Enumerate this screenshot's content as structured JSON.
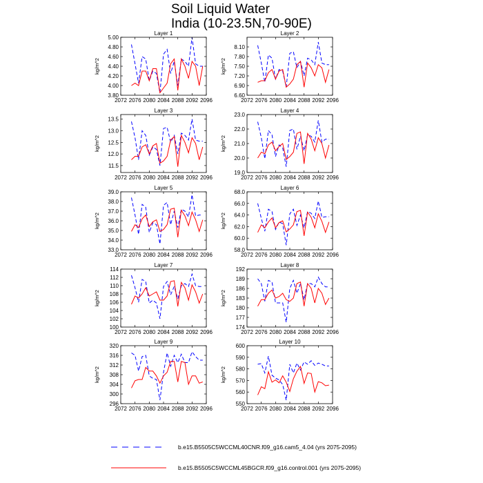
{
  "figure": {
    "title_line1": "Soil Liquid Water",
    "title_line2": "India (10-23.5N,70-90E)"
  },
  "legend": [
    {
      "label": "b.e15.B5505C5WCCML40CNR.f09_g16.cam5_4.04 (yrs 2075-2095)",
      "color": "#0000ff",
      "dash": "dashed"
    },
    {
      "label": "b.e15.B5505C5WCCML45BGCR.f09_g16.control.001 (yrs 2075-2095)",
      "color": "#ff0000",
      "dash": "solid"
    }
  ],
  "chart_data": [
    {
      "type": "line",
      "title": "Layer 1",
      "ylabel": "kg/m^2",
      "xlim": [
        2072,
        2096
      ],
      "ylim": [
        3.8,
        5.0
      ],
      "xticks": [
        "2072",
        "2076",
        "2080",
        "2084",
        "2088",
        "2092",
        "2096"
      ],
      "yticks": [
        "3.80",
        "4.00",
        "4.20",
        "4.40",
        "4.60",
        "4.80",
        "5.00"
      ],
      "x": [
        2075,
        2076,
        2077,
        2078,
        2079,
        2080,
        2081,
        2082,
        2083,
        2084,
        2085,
        2086,
        2087,
        2088,
        2089,
        2090,
        2091,
        2092,
        2093,
        2094,
        2095
      ],
      "series": [
        {
          "values": [
            4.85,
            4.45,
            4.05,
            4.6,
            4.55,
            4.1,
            4.3,
            4.25,
            3.85,
            4.65,
            4.75,
            4.25,
            4.5,
            4.0,
            4.55,
            4.5,
            4.4,
            5.0,
            4.45,
            4.4,
            4.4
          ]
        },
        {
          "values": [
            4.0,
            4.05,
            4.0,
            4.3,
            4.3,
            4.1,
            4.35,
            4.35,
            3.85,
            3.95,
            4.05,
            4.45,
            4.55,
            3.9,
            4.55,
            4.4,
            4.15,
            4.5,
            4.4,
            4.0,
            4.4
          ]
        }
      ]
    },
    {
      "type": "line",
      "title": "Layer 2",
      "ylabel": "kg/m^2",
      "xlim": [
        2072,
        2096
      ],
      "ylim": [
        6.6,
        8.4
      ],
      "xticks": [
        "2072",
        "2076",
        "2080",
        "2084",
        "2088",
        "2092",
        "2096"
      ],
      "yticks": [
        "6.60",
        "6.90",
        "7.20",
        "7.50",
        "7.80",
        "8.10"
      ],
      "x": [
        2075,
        2076,
        2077,
        2078,
        2079,
        2080,
        2081,
        2082,
        2083,
        2084,
        2085,
        2086,
        2087,
        2088,
        2089,
        2090,
        2091,
        2092,
        2093,
        2094,
        2095
      ],
      "series": [
        {
          "values": [
            8.15,
            7.6,
            7.0,
            7.85,
            7.75,
            7.1,
            7.4,
            7.35,
            6.85,
            7.9,
            7.95,
            7.45,
            7.65,
            7.2,
            7.75,
            7.7,
            7.55,
            8.25,
            7.6,
            7.55,
            7.55
          ]
        },
        {
          "values": [
            7.0,
            7.05,
            7.05,
            7.3,
            7.4,
            7.1,
            7.35,
            7.4,
            6.85,
            6.95,
            7.1,
            7.55,
            7.65,
            6.85,
            7.6,
            7.45,
            7.2,
            7.55,
            7.45,
            7.0,
            7.4
          ]
        }
      ]
    },
    {
      "type": "line",
      "title": "Layer 3",
      "ylabel": "kg/m^2",
      "xlim": [
        2072,
        2096
      ],
      "ylim": [
        11.2,
        13.7
      ],
      "xticks": [
        "2072",
        "2076",
        "2080",
        "2084",
        "2088",
        "2092",
        "2096"
      ],
      "yticks": [
        "11.5",
        "12.0",
        "12.5",
        "13.0",
        "13.5"
      ],
      "x": [
        2075,
        2076,
        2077,
        2078,
        2079,
        2080,
        2081,
        2082,
        2083,
        2084,
        2085,
        2086,
        2087,
        2088,
        2089,
        2090,
        2091,
        2092,
        2093,
        2094,
        2095
      ],
      "series": [
        {
          "values": [
            13.4,
            12.7,
            11.75,
            13.0,
            12.8,
            11.95,
            12.3,
            12.2,
            11.5,
            13.1,
            13.15,
            12.5,
            12.8,
            12.0,
            12.9,
            12.8,
            12.6,
            13.5,
            12.6,
            12.55,
            12.55
          ]
        },
        {
          "values": [
            11.75,
            11.9,
            11.9,
            12.3,
            12.4,
            12.0,
            12.35,
            12.45,
            11.6,
            11.7,
            11.9,
            12.6,
            12.75,
            11.45,
            12.8,
            12.5,
            12.05,
            12.7,
            12.45,
            11.75,
            12.3
          ]
        }
      ]
    },
    {
      "type": "line",
      "title": "Layer 4",
      "ylabel": "kg/m^2",
      "xlim": [
        2072,
        2096
      ],
      "ylim": [
        19.0,
        23.0
      ],
      "xticks": [
        "2072",
        "2076",
        "2080",
        "2084",
        "2088",
        "2092",
        "2096"
      ],
      "yticks": [
        "19.0",
        "20.0",
        "21.0",
        "22.0",
        "23.0"
      ],
      "x": [
        2075,
        2076,
        2077,
        2078,
        2079,
        2080,
        2081,
        2082,
        2083,
        2084,
        2085,
        2086,
        2087,
        2088,
        2089,
        2090,
        2091,
        2092,
        2093,
        2094,
        2095
      ],
      "series": [
        {
          "values": [
            22.5,
            21.4,
            19.95,
            21.9,
            21.6,
            20.1,
            20.9,
            20.7,
            19.4,
            21.9,
            22.0,
            20.6,
            21.5,
            20.5,
            21.6,
            21.5,
            21.1,
            22.6,
            21.1,
            21.3,
            21.3
          ]
        },
        {
          "values": [
            20.0,
            20.4,
            20.3,
            20.9,
            21.1,
            20.5,
            20.8,
            21.0,
            19.9,
            20.1,
            20.4,
            21.7,
            21.8,
            19.6,
            21.7,
            21.3,
            20.5,
            21.4,
            21.0,
            20.0,
            20.9
          ]
        }
      ]
    },
    {
      "type": "line",
      "title": "Layer 5",
      "ylabel": "kg/m^2",
      "xlim": [
        2072,
        2096
      ],
      "ylim": [
        33.0,
        39.0
      ],
      "xticks": [
        "2072",
        "2076",
        "2080",
        "2084",
        "2088",
        "2092",
        "2096"
      ],
      "yticks": [
        "33.0",
        "34.0",
        "35.0",
        "36.0",
        "37.0",
        "38.0",
        "39.0"
      ],
      "x": [
        2075,
        2076,
        2077,
        2078,
        2079,
        2080,
        2081,
        2082,
        2083,
        2084,
        2085,
        2086,
        2087,
        2088,
        2089,
        2090,
        2091,
        2092,
        2093,
        2094,
        2095
      ],
      "series": [
        {
          "values": [
            38.4,
            36.6,
            34.6,
            37.7,
            37.4,
            34.8,
            35.8,
            35.6,
            33.6,
            37.6,
            37.9,
            35.6,
            37.0,
            35.3,
            37.2,
            37.0,
            36.4,
            38.7,
            36.5,
            36.6,
            36.6
          ]
        },
        {
          "values": [
            34.9,
            35.6,
            35.3,
            36.2,
            36.6,
            35.4,
            35.9,
            36.1,
            34.9,
            35.1,
            35.6,
            37.2,
            37.3,
            34.3,
            37.1,
            36.5,
            35.5,
            36.9,
            36.1,
            34.9,
            36.1
          ]
        }
      ]
    },
    {
      "type": "line",
      "title": "Layer 6",
      "ylabel": "kg/m^2",
      "xlim": [
        2072,
        2096
      ],
      "ylim": [
        58.0,
        68.0
      ],
      "xticks": [
        "2072",
        "2076",
        "2080",
        "2084",
        "2088",
        "2092",
        "2096"
      ],
      "yticks": [
        "58.0",
        "60.0",
        "62.0",
        "64.0",
        "66.0",
        "68.0"
      ],
      "x": [
        2075,
        2076,
        2077,
        2078,
        2079,
        2080,
        2081,
        2082,
        2083,
        2084,
        2085,
        2086,
        2087,
        2088,
        2089,
        2090,
        2091,
        2092,
        2093,
        2094,
        2095
      ],
      "series": [
        {
          "values": [
            66.0,
            63.4,
            61.2,
            65.0,
            64.6,
            61.5,
            62.8,
            62.5,
            58.8,
            64.2,
            65.0,
            62.2,
            64.0,
            61.8,
            64.6,
            64.3,
            63.4,
            66.4,
            63.6,
            63.7,
            63.7
          ]
        },
        {
          "values": [
            61.0,
            62.3,
            61.8,
            62.8,
            63.5,
            61.8,
            62.7,
            63.0,
            61.1,
            61.6,
            62.3,
            64.6,
            64.8,
            60.4,
            64.5,
            63.6,
            61.8,
            64.2,
            62.9,
            61.0,
            62.8
          ]
        }
      ]
    },
    {
      "type": "line",
      "title": "Layer 7",
      "ylabel": "kg/m^2",
      "xlim": [
        2072,
        2096
      ],
      "ylim": [
        100,
        114
      ],
      "xticks": [
        "2072",
        "2076",
        "2080",
        "2084",
        "2088",
        "2092",
        "2096"
      ],
      "yticks": [
        "100",
        "102",
        "104",
        "106",
        "108",
        "110",
        "112",
        "114"
      ],
      "x": [
        2075,
        2076,
        2077,
        2078,
        2079,
        2080,
        2081,
        2082,
        2083,
        2084,
        2085,
        2086,
        2087,
        2088,
        2089,
        2090,
        2091,
        2092,
        2093,
        2094,
        2095
      ],
      "series": [
        {
          "values": [
            112.5,
            109.5,
            106.0,
            111.5,
            111.0,
            105.8,
            106.5,
            105.8,
            102.0,
            109.8,
            111.0,
            107.8,
            109.8,
            106.8,
            110.0,
            110.5,
            109.8,
            112.8,
            110.0,
            109.8,
            109.8
          ]
        },
        {
          "values": [
            105.5,
            107.5,
            107.0,
            108.0,
            109.5,
            107.5,
            108.0,
            108.5,
            106.5,
            106.5,
            107.5,
            111.0,
            111.2,
            105.0,
            110.8,
            109.5,
            106.5,
            110.2,
            108.5,
            105.8,
            108.0
          ]
        }
      ]
    },
    {
      "type": "line",
      "title": "Layer 8",
      "ylabel": "kg/m^2",
      "xlim": [
        2072,
        2096
      ],
      "ylim": [
        174,
        192
      ],
      "xticks": [
        "2072",
        "2076",
        "2080",
        "2084",
        "2088",
        "2092",
        "2096"
      ],
      "yticks": [
        "174",
        "177",
        "180",
        "183",
        "186",
        "189",
        "192"
      ],
      "x": [
        2075,
        2076,
        2077,
        2078,
        2079,
        2080,
        2081,
        2082,
        2083,
        2084,
        2085,
        2086,
        2087,
        2088,
        2089,
        2090,
        2091,
        2092,
        2093,
        2094,
        2095
      ],
      "series": [
        {
          "values": [
            189.0,
            187.5,
            182.0,
            188.5,
            188.0,
            181.5,
            181.5,
            181.5,
            175.5,
            186.0,
            188.5,
            184.5,
            187.5,
            182.5,
            187.5,
            187.5,
            186.5,
            189.5,
            187.5,
            186.5,
            186.5
          ]
        },
        {
          "values": [
            180.5,
            182.5,
            182.5,
            184.5,
            185.5,
            183.0,
            183.5,
            184.5,
            182.5,
            182.0,
            183.0,
            187.5,
            188.0,
            180.5,
            187.5,
            186.0,
            181.5,
            186.0,
            184.5,
            181.0,
            183.0
          ]
        }
      ]
    },
    {
      "type": "line",
      "title": "Layer 9",
      "ylabel": "kg/m^2",
      "xlim": [
        2072,
        2096
      ],
      "ylim": [
        296,
        320
      ],
      "xticks": [
        "2072",
        "2076",
        "2080",
        "2084",
        "2088",
        "2092",
        "2096"
      ],
      "yticks": [
        "296",
        "300",
        "304",
        "308",
        "312",
        "316",
        "320"
      ],
      "x": [
        2075,
        2076,
        2077,
        2078,
        2079,
        2080,
        2081,
        2082,
        2083,
        2084,
        2085,
        2086,
        2087,
        2088,
        2089,
        2090,
        2091,
        2092,
        2093,
        2094,
        2095
      ],
      "series": [
        {
          "values": [
            317.0,
            316.0,
            309.5,
            315.5,
            316.0,
            307.5,
            306.5,
            306.0,
            297.5,
            309.0,
            317.0,
            311.5,
            316.0,
            313.0,
            316.5,
            313.0,
            313.0,
            317.5,
            315.5,
            314.0,
            314.0
          ]
        },
        {
          "values": [
            302.5,
            305.5,
            306.0,
            306.0,
            311.0,
            309.5,
            309.5,
            307.5,
            304.5,
            307.5,
            309.0,
            313.5,
            313.5,
            305.0,
            313.5,
            313.0,
            304.0,
            307.5,
            307.5,
            304.5,
            305.0
          ]
        }
      ]
    },
    {
      "type": "line",
      "title": "Layer 10",
      "ylabel": "kg/m^2",
      "xlim": [
        2072,
        2096
      ],
      "ylim": [
        550,
        600
      ],
      "xticks": [
        "2072",
        "2076",
        "2080",
        "2084",
        "2088",
        "2092",
        "2096"
      ],
      "yticks": [
        "550",
        "560",
        "570",
        "580",
        "590",
        "600"
      ],
      "x": [
        2075,
        2076,
        2077,
        2078,
        2079,
        2080,
        2081,
        2082,
        2083,
        2084,
        2085,
        2086,
        2087,
        2088,
        2089,
        2090,
        2091,
        2092,
        2093,
        2094,
        2095
      ],
      "series": [
        {
          "values": [
            584.0,
            584.5,
            576.5,
            591.0,
            574.5,
            572.0,
            570.5,
            566.5,
            553.0,
            584.0,
            576.5,
            585.0,
            579.0,
            586.0,
            584.0,
            587.0,
            583.0,
            585.0,
            584.0,
            582.5,
            582.5
          ]
        },
        {
          "values": [
            557.5,
            564.5,
            563.0,
            577.5,
            568.5,
            570.5,
            568.0,
            574.0,
            568.5,
            560.5,
            571.5,
            578.0,
            582.0,
            567.5,
            576.5,
            576.0,
            560.0,
            569.0,
            568.0,
            565.5,
            566.0
          ]
        }
      ]
    }
  ]
}
